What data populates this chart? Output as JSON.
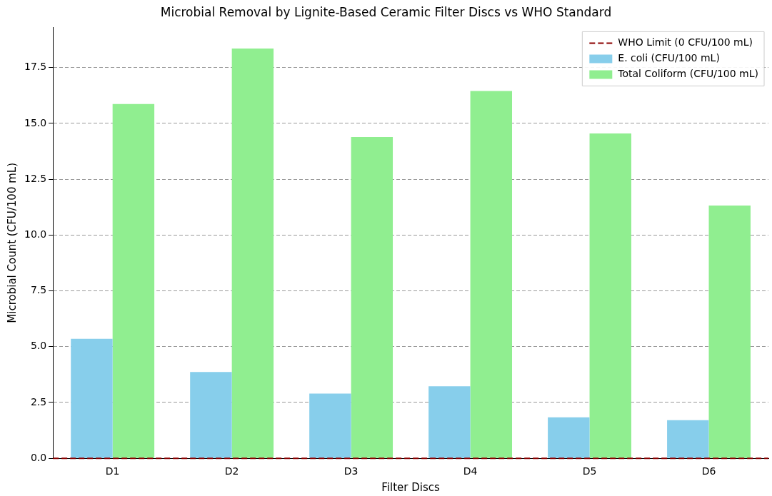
{
  "chart_data": {
    "type": "bar",
    "title": "Microbial Removal by Lignite-Based Ceramic Filter Discs vs WHO Standard",
    "xlabel": "Filter Discs",
    "ylabel": "Microbial Count (CFU/100 mL)",
    "categories": [
      "D1",
      "D2",
      "D3",
      "D4",
      "D5",
      "D6"
    ],
    "series": [
      {
        "name": "E. coli (CFU/100 mL)",
        "color": "#87ceeb",
        "values": [
          5.35,
          3.87,
          2.9,
          3.23,
          1.84,
          1.71
        ]
      },
      {
        "name": "Total Coliform (CFU/100 mL)",
        "color": "#90ee90",
        "values": [
          15.87,
          18.35,
          14.39,
          16.45,
          14.55,
          11.32
        ]
      }
    ],
    "ylim": [
      0,
      19.3
    ],
    "yticks": [
      {
        "value": 0,
        "label": "0.0"
      },
      {
        "value": 2.5,
        "label": "2.5"
      },
      {
        "value": 5,
        "label": "5.0"
      },
      {
        "value": 7.5,
        "label": "7.5"
      },
      {
        "value": 10,
        "label": "10.0"
      },
      {
        "value": 12.5,
        "label": "12.5"
      },
      {
        "value": 15,
        "label": "15.0"
      },
      {
        "value": 17.5,
        "label": "17.5"
      }
    ],
    "ref_lines": [
      {
        "axis": "y",
        "value": 0,
        "label": "WHO Limit (0 CFU/100 mL)",
        "color": "#8b0000",
        "line_style": "dashed"
      }
    ],
    "grid": "y",
    "legend": "top right"
  }
}
